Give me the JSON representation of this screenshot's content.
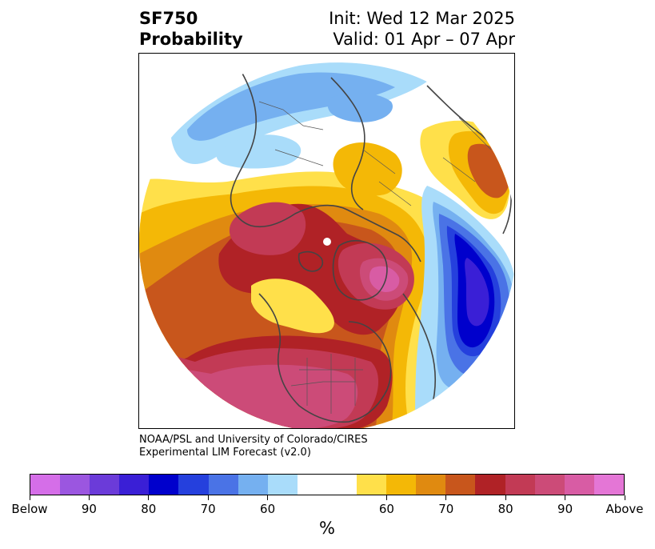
{
  "header": {
    "variable": "SF750",
    "product": "Probability",
    "init": "Init: Wed 12 Mar 2025",
    "valid": "Valid: 01 Apr – 07 Apr"
  },
  "credit": {
    "line1": "NOAA/PSL and University of Colorado/CIRES",
    "line2": "Experimental LIM Forecast (v2.0)"
  },
  "colorbar": {
    "unit": "%",
    "colors": [
      "#d56ee8",
      "#9b56e0",
      "#6b3bd9",
      "#3a1fd6",
      "#0000cc",
      "#2540dd",
      "#4a73e6",
      "#75b0f0",
      "#a9dcfa",
      "#ffffff",
      "#ffffff",
      "#ffe04a",
      "#f4b806",
      "#e08a10",
      "#c8561c",
      "#b02226",
      "#c23a55",
      "#cc4b78",
      "#d85ca4",
      "#e476d6"
    ],
    "labels": [
      "Below",
      "90",
      "80",
      "70",
      "60",
      "60",
      "70",
      "80",
      "90",
      "Above"
    ],
    "label_positions": [
      0,
      2,
      4,
      6,
      8,
      12,
      14,
      16,
      18,
      20
    ]
  },
  "map": {
    "projection": "north-polar",
    "field": "probability"
  }
}
